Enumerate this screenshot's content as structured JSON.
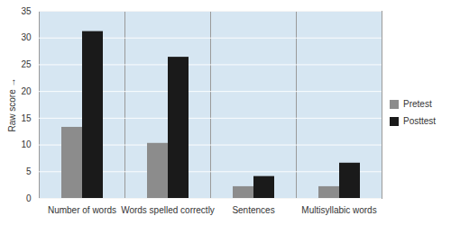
{
  "chart_data": {
    "type": "bar",
    "categories": [
      "Number of words",
      "Words spelled correctly",
      "Sentences",
      "Multisyllabic words"
    ],
    "series": [
      {
        "name": "Pretest",
        "color": "#8c8c8c",
        "values": [
          13.3,
          10.3,
          2.2,
          2.2
        ]
      },
      {
        "name": "Posttest",
        "color": "#1a1a1a",
        "values": [
          31.2,
          26.4,
          4.1,
          6.6
        ]
      }
    ],
    "y_label": "Raw score",
    "ylim": [
      0,
      35
    ],
    "yticks": [
      0,
      5,
      10,
      15,
      20,
      25,
      30,
      35
    ],
    "grid": true,
    "legend": "right"
  }
}
